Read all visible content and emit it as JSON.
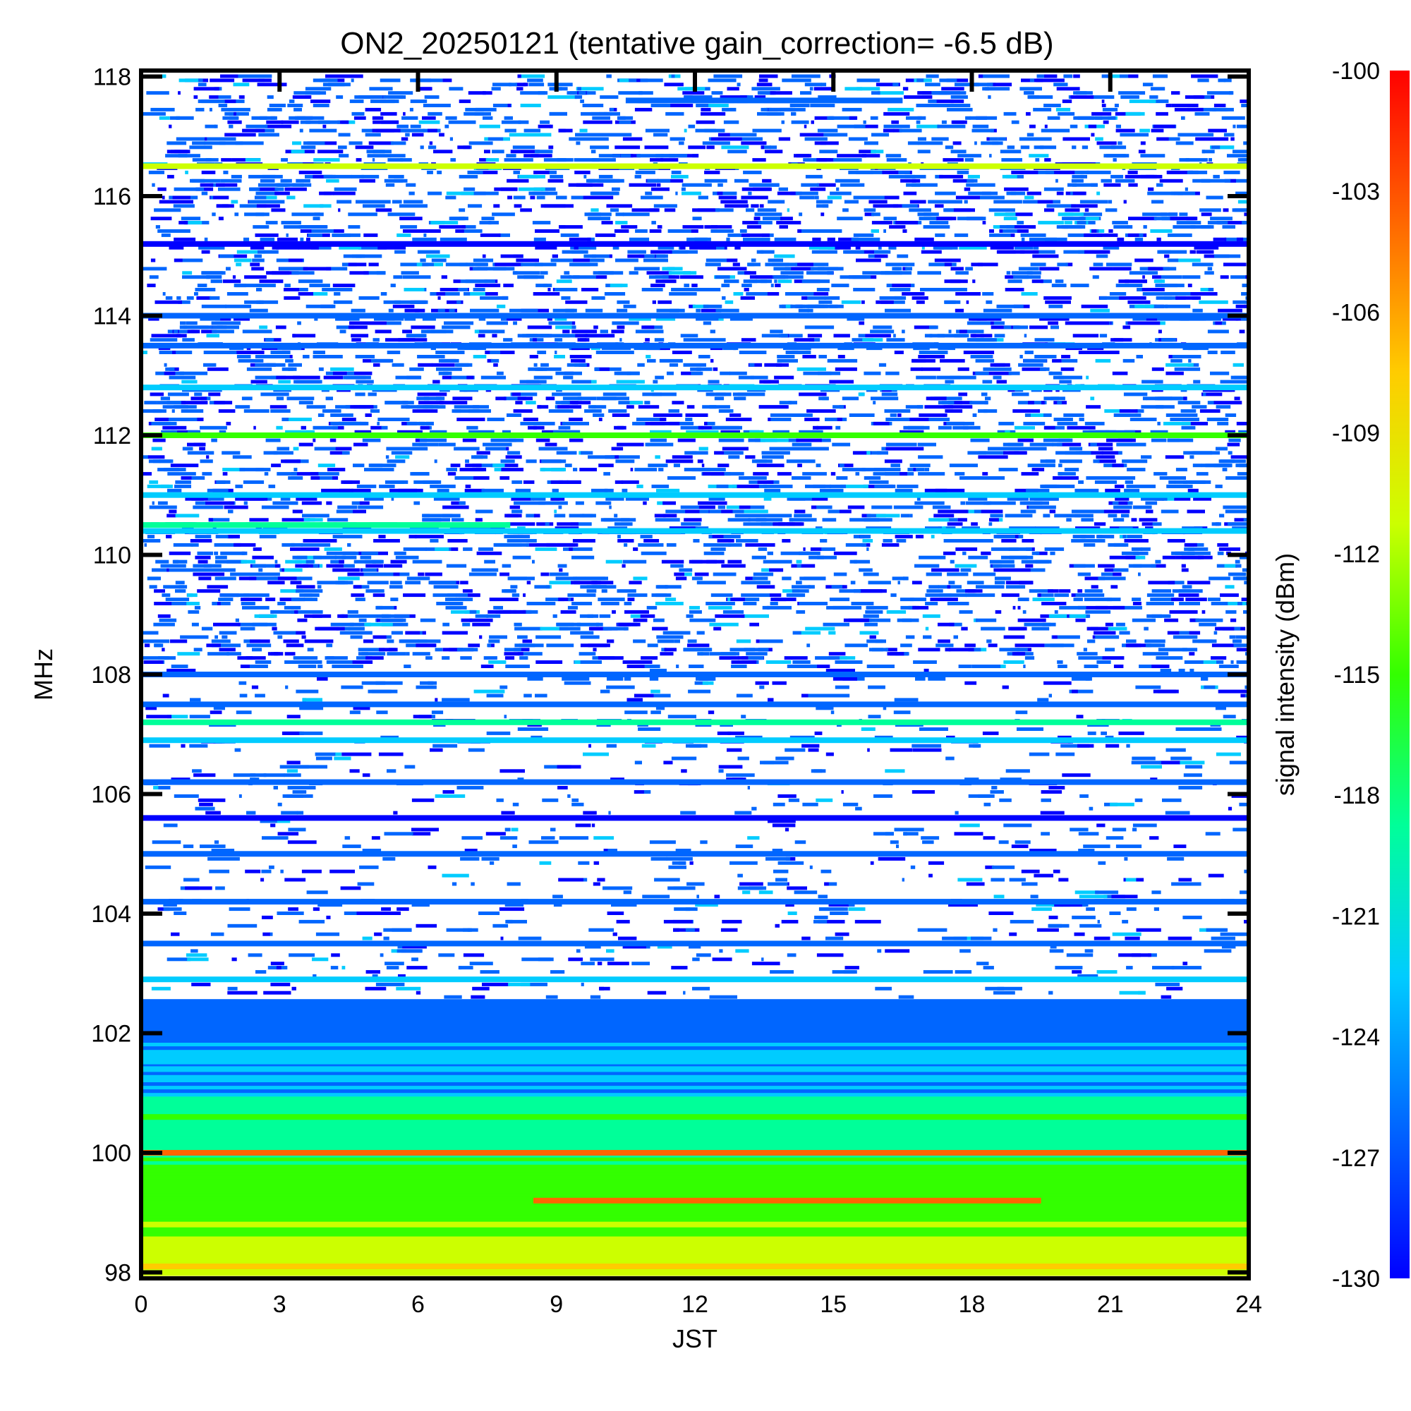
{
  "chart_data": {
    "type": "heatmap",
    "title": "ON2_20250121 (tentative gain_correction= -6.5 dB)",
    "xlabel": "JST",
    "ylabel": "MHz",
    "colorbar_label": "signal intensity (dBm)",
    "xlim": [
      0,
      24
    ],
    "ylim": [
      97.9,
      118.1
    ],
    "x_ticks": [
      "0",
      "3",
      "6",
      "9",
      "12",
      "15",
      "18",
      "21",
      "24"
    ],
    "y_ticks": [
      "98",
      "100",
      "102",
      "104",
      "106",
      "108",
      "110",
      "112",
      "114",
      "116",
      "118"
    ],
    "colorbar_range": [
      -130,
      -100
    ],
    "colorbar_ticks": [
      "-100",
      "-103",
      "-106",
      "-109",
      "-112",
      "-115",
      "-118",
      "-121",
      "-124",
      "-127",
      "-130"
    ],
    "colormap": [
      "#0000ff",
      "#0066ff",
      "#00ccff",
      "#00ff99",
      "#33ff00",
      "#ccff00",
      "#ffcc00",
      "#ff6600",
      "#ff0000"
    ],
    "noise_floor_dBm": -130,
    "bands": [
      {
        "mhz": 98.1,
        "dBm": -106,
        "start": 0,
        "end": 24
      },
      {
        "mhz": 98.3,
        "dBm": -112,
        "start": 0,
        "end": 24
      },
      {
        "mhz": 98.8,
        "dBm": -112,
        "start": 0,
        "end": 24
      },
      {
        "mhz": 99.2,
        "dBm": -103,
        "start": 8.5,
        "end": 19.5
      },
      {
        "mhz": 99.5,
        "dBm": -115,
        "start": 0,
        "end": 24
      },
      {
        "mhz": 100.0,
        "dBm": -103,
        "start": 0,
        "end": 24
      },
      {
        "mhz": 100.6,
        "dBm": -115,
        "start": 0,
        "end": 24
      },
      {
        "mhz": 101.4,
        "dBm": -124,
        "start": 0,
        "end": 24
      },
      {
        "mhz": 102.3,
        "dBm": -128,
        "start": 0,
        "end": 24
      },
      {
        "mhz": 102.9,
        "dBm": -124,
        "start": 0,
        "end": 24
      },
      {
        "mhz": 103.5,
        "dBm": -125,
        "start": 0,
        "end": 24
      },
      {
        "mhz": 104.2,
        "dBm": -128,
        "start": 0,
        "end": 24
      },
      {
        "mhz": 105.0,
        "dBm": -127,
        "start": 0,
        "end": 24
      },
      {
        "mhz": 105.6,
        "dBm": -129,
        "start": 0,
        "end": 24
      },
      {
        "mhz": 106.2,
        "dBm": -126,
        "start": 0,
        "end": 24
      },
      {
        "mhz": 106.9,
        "dBm": -124,
        "start": 0,
        "end": 24
      },
      {
        "mhz": 107.2,
        "dBm": -117,
        "start": 0,
        "end": 24
      },
      {
        "mhz": 107.5,
        "dBm": -125,
        "start": 0,
        "end": 24
      },
      {
        "mhz": 108.0,
        "dBm": -125,
        "start": 0,
        "end": 24
      },
      {
        "mhz": 110.4,
        "dBm": -124,
        "start": 0,
        "end": 24
      },
      {
        "mhz": 110.5,
        "dBm": -117,
        "start": 0,
        "end": 8
      },
      {
        "mhz": 111.0,
        "dBm": -124,
        "start": 0,
        "end": 24
      },
      {
        "mhz": 112.0,
        "dBm": -115,
        "start": 0,
        "end": 24
      },
      {
        "mhz": 112.8,
        "dBm": -124,
        "start": 0,
        "end": 24
      },
      {
        "mhz": 113.5,
        "dBm": -128,
        "start": 0,
        "end": 24
      },
      {
        "mhz": 114.0,
        "dBm": -128,
        "start": 0,
        "end": 24
      },
      {
        "mhz": 115.2,
        "dBm": -129,
        "start": 0,
        "end": 24
      },
      {
        "mhz": 116.5,
        "dBm": -110,
        "start": 0,
        "end": 24
      },
      {
        "mhz": 117.6,
        "dBm": -126,
        "start": 10.5,
        "end": 16.5
      }
    ]
  }
}
